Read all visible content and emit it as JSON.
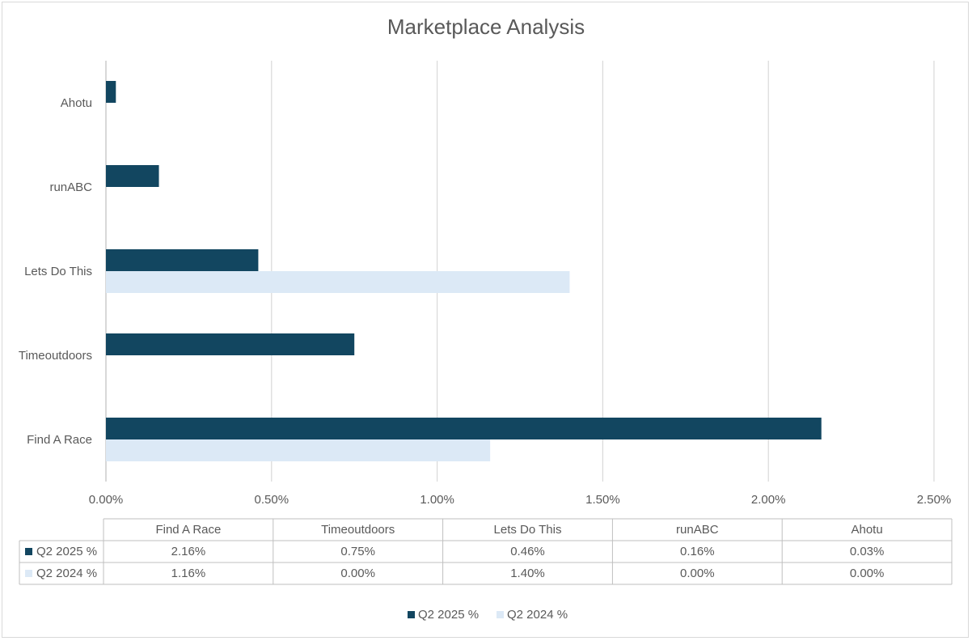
{
  "chart_data": {
    "type": "bar",
    "orientation": "horizontal",
    "title": "Marketplace Analysis",
    "categories": [
      "Find A Race",
      "Timeoutdoors",
      "Lets Do This",
      "runABC",
      "Ahotu"
    ],
    "series": [
      {
        "name": "Q2 2025 %",
        "color": "#124660",
        "values": [
          2.16,
          0.75,
          0.46,
          0.16,
          0.03
        ],
        "labels": [
          "2.16%",
          "0.75%",
          "0.46%",
          "0.16%",
          "0.03%"
        ]
      },
      {
        "name": "Q2 2024 %",
        "color": "#dce9f6",
        "values": [
          1.16,
          0.0,
          1.4,
          0.0,
          0.0
        ],
        "labels": [
          "1.16%",
          "0.00%",
          "1.40%",
          "0.00%",
          "0.00%"
        ]
      }
    ],
    "xlim": [
      0,
      2.5
    ],
    "ticks": [
      0,
      0.5,
      1.0,
      1.5,
      2.0,
      2.5
    ],
    "tick_labels": [
      "0.00%",
      "0.50%",
      "1.00%",
      "1.50%",
      "2.00%",
      "2.50%"
    ],
    "grid": true,
    "data_table": true,
    "legend_position": "bottom"
  }
}
